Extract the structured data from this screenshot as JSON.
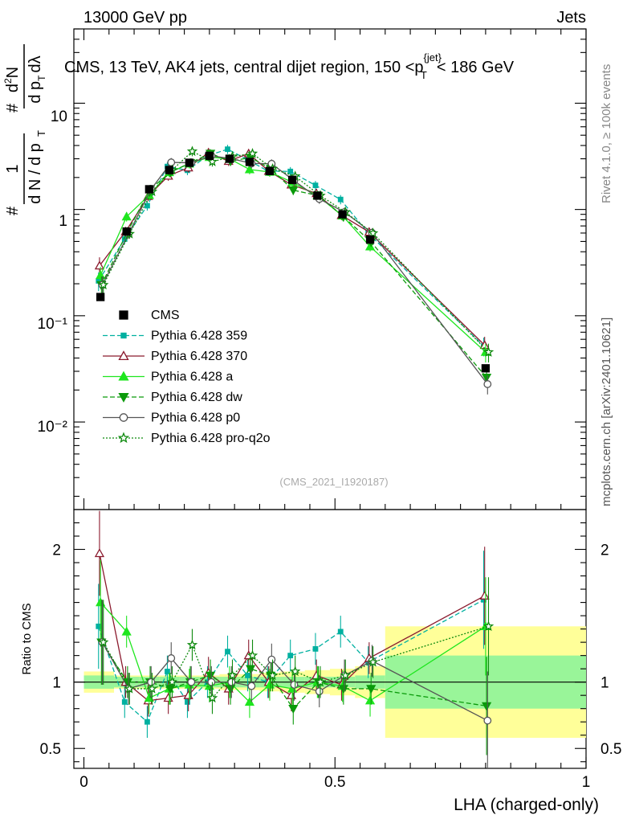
{
  "header": {
    "left": "13000 GeV pp",
    "right": "Jets"
  },
  "side_labels": {
    "top": "Rivet 4.1.0, ≥ 100k events",
    "bottom": "mcplots.cern.ch [arXiv:2401.10621]"
  },
  "chart_data": {
    "type": "line",
    "title": "CMS, 13 TeV, AK4 jets, central dijet region, 150 <p",
    "title_sup": "{jet}",
    "title_sub": "T",
    "title_tail": "< 186 GeV",
    "analysis_id": "(CMS_2021_I1920187)",
    "ylabel": {
      "num_a": "#",
      "num_b": "1",
      "den_a": "d N / d p",
      "den_b": "T",
      "num2": "#",
      "num2_b": "d",
      "num2_sup": "2",
      "num2_c": "N",
      "den2": "d p",
      "den2_sub": "T",
      "den2_tail": "dλ"
    },
    "xlabel": "LHA (charged-only)",
    "ratio_ylabel": "Ratio to CMS",
    "xlim": [
      -0.02,
      1.0
    ],
    "ylim": [
      0.0015,
      50
    ],
    "yscale": "log",
    "ratio_ylim": [
      0.35,
      2.3
    ],
    "x_ticks": [
      "0",
      "0.5",
      "1"
    ],
    "y_ticks": [
      "10⁻²",
      "10⁻¹",
      "1",
      "10"
    ],
    "ratio_ticks": [
      "0.5",
      "1",
      "2"
    ],
    "x": [
      0.033,
      0.085,
      0.13,
      0.17,
      0.21,
      0.25,
      0.29,
      0.33,
      0.37,
      0.415,
      0.465,
      0.515,
      0.57,
      0.8
    ],
    "bin_edges": [
      0.0,
      0.06,
      0.11,
      0.15,
      0.19,
      0.23,
      0.27,
      0.31,
      0.35,
      0.39,
      0.44,
      0.49,
      0.54,
      0.6,
      1.0
    ],
    "data": {
      "name": "CMS",
      "values": [
        0.15,
        0.62,
        1.55,
        2.35,
        2.75,
        3.2,
        3.0,
        2.8,
        2.3,
        1.9,
        1.35,
        0.9,
        0.52,
        0.032
      ],
      "band_inner": [
        0.05,
        0.04,
        0.04,
        0.04,
        0.04,
        0.04,
        0.04,
        0.04,
        0.04,
        0.04,
        0.04,
        0.04,
        0.05,
        0.2
      ],
      "band_outer": [
        0.08,
        0.05,
        0.05,
        0.05,
        0.05,
        0.05,
        0.06,
        0.06,
        0.07,
        0.08,
        0.09,
        0.1,
        0.12,
        0.42
      ]
    },
    "series": [
      {
        "name": "Pythia 6.428 359",
        "color": "#00b0a0",
        "dash": "6,3",
        "marker": "square",
        "ratio": [
          1.42,
          0.85,
          0.7,
          1.08,
          0.85,
          1.0,
          1.23,
          1.05,
          1.0,
          1.2,
          1.25,
          1.38,
          1.15,
          1.62
        ]
      },
      {
        "name": "Pythia 6.428 370",
        "color": "#8b1a2e",
        "dash": "",
        "marker": "triangle-open",
        "ratio": [
          1.97,
          1.0,
          0.86,
          0.88,
          0.9,
          1.07,
          0.95,
          1.2,
          1.0,
          0.9,
          1.05,
          0.98,
          1.18,
          1.65
        ]
      },
      {
        "name": "Pythia 6.428 a",
        "color": "#1ee61e",
        "dash": "",
        "marker": "triangle",
        "ratio": [
          1.6,
          1.38,
          0.88,
          0.95,
          0.98,
          0.97,
          1.0,
          0.85,
          0.98,
          0.95,
          1.0,
          0.97,
          0.86,
          1.42
        ]
      },
      {
        "name": "Pythia 6.428 dw",
        "color": "#0a9a0a",
        "dash": "6,3",
        "marker": "triangle-down",
        "ratio": [
          1.3,
          1.0,
          1.0,
          0.95,
          1.0,
          1.05,
          0.95,
          1.1,
          1.05,
          0.8,
          1.0,
          0.95,
          0.95,
          0.82
        ]
      },
      {
        "name": "Pythia 6.428 p0",
        "color": "#555555",
        "dash": "",
        "marker": "circle-open",
        "ratio": [
          1.3,
          0.95,
          1.0,
          1.18,
          1.0,
          1.0,
          1.0,
          0.97,
          1.17,
          0.98,
          0.93,
          1.05,
          1.16,
          0.71
        ]
      },
      {
        "name": "Pythia 6.428 pro-q2o",
        "color": "#0e8a0e",
        "dash": "2,2",
        "marker": "star",
        "ratio": [
          1.3,
          0.95,
          0.95,
          1.0,
          1.28,
          0.88,
          1.05,
          1.2,
          1.05,
          1.08,
          1.0,
          1.05,
          1.15,
          1.42
        ]
      }
    ]
  }
}
